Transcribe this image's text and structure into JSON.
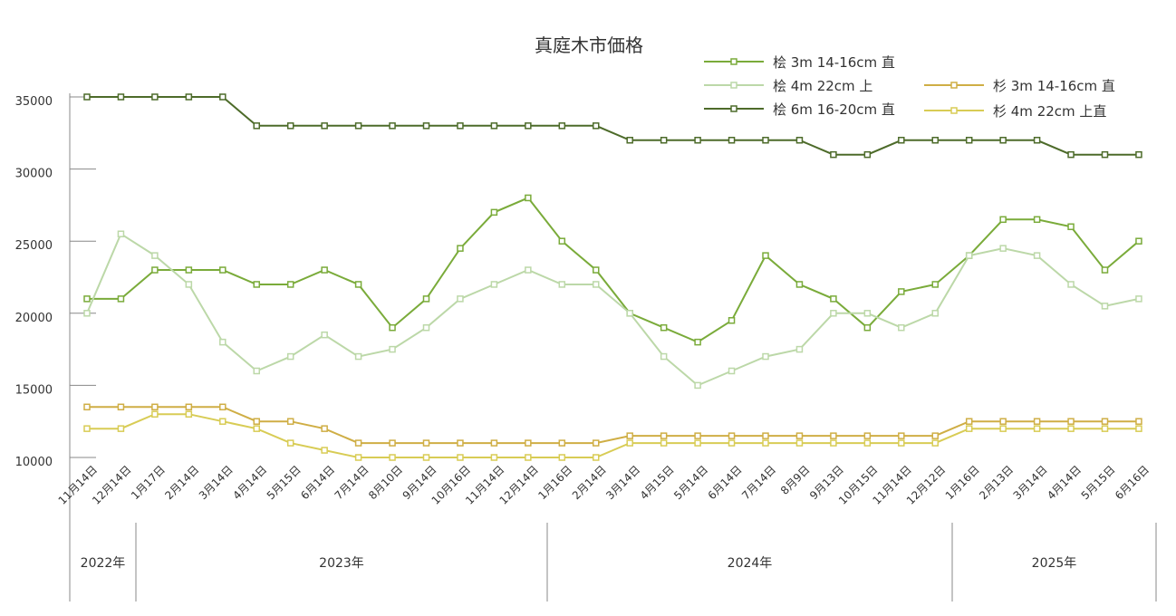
{
  "chart_data": {
    "type": "line",
    "title": "真庭木市価格",
    "ylim": [
      10000,
      35000
    ],
    "yticks": [
      "35000",
      "30000",
      "25000",
      "20000",
      "15000",
      "10000"
    ],
    "ytick_values": [
      35000,
      30000,
      25000,
      20000,
      15000,
      10000
    ],
    "categories": [
      "11月14日",
      "12月14日",
      "1月17日",
      "2月14日",
      "3月14日",
      "4月14日",
      "5月15日",
      "6月14日",
      "7月14日",
      "8月10日",
      "9月14日",
      "10月16日",
      "11月14日",
      "12月14日",
      "1月16日",
      "2月14日",
      "3月14日",
      "4月15日",
      "5月14日",
      "6月14日",
      "7月14日",
      "8月9日",
      "9月13日",
      "10月15日",
      "11月14日",
      "12月12日",
      "1月16日",
      "2月13日",
      "3月14日",
      "4月14日",
      "5月15日",
      "6月16日"
    ],
    "years": [
      {
        "label": "2022年",
        "start": 0,
        "end": 1
      },
      {
        "label": "2023年",
        "start": 2,
        "end": 13
      },
      {
        "label": "2024年",
        "start": 14,
        "end": 25
      },
      {
        "label": "2025年",
        "start": 26,
        "end": 31
      }
    ],
    "series": [
      {
        "name": "桧 3m 14-16cm 直",
        "color": "#7aab3a",
        "values": [
          21000,
          21000,
          23000,
          23000,
          23000,
          22000,
          22000,
          23000,
          22000,
          19000,
          21000,
          24500,
          27000,
          28000,
          25000,
          23000,
          20000,
          19000,
          18000,
          19500,
          24000,
          22000,
          21000,
          19000,
          21500,
          22000,
          24000,
          26500,
          26500,
          26000,
          23000,
          25000
        ]
      },
      {
        "name": "桧 4m 22cm 上",
        "color": "#bcd8a8",
        "values": [
          20000,
          25500,
          24000,
          22000,
          18000,
          16000,
          17000,
          18500,
          17000,
          17500,
          19000,
          21000,
          22000,
          23000,
          22000,
          22000,
          20000,
          17000,
          15000,
          16000,
          17000,
          17500,
          20000,
          20000,
          19000,
          20000,
          24000,
          24500,
          24000,
          22000,
          20500,
          21000
        ]
      },
      {
        "name": "桧 6m 16-20cm 直",
        "color": "#4d6b2a",
        "values": [
          35000,
          35000,
          35000,
          35000,
          35000,
          33000,
          33000,
          33000,
          33000,
          33000,
          33000,
          33000,
          33000,
          33000,
          33000,
          33000,
          32000,
          32000,
          32000,
          32000,
          32000,
          32000,
          31000,
          31000,
          32000,
          32000,
          32000,
          32000,
          32000,
          31000,
          31000,
          31000
        ]
      },
      {
        "name": "杉 3m 14-16cm 直",
        "color": "#cfae45",
        "values": [
          13500,
          13500,
          13500,
          13500,
          13500,
          12500,
          12500,
          12000,
          11000,
          11000,
          11000,
          11000,
          11000,
          11000,
          11000,
          11000,
          11500,
          11500,
          11500,
          11500,
          11500,
          11500,
          11500,
          11500,
          11500,
          11500,
          12500,
          12500,
          12500,
          12500,
          12500,
          12500
        ]
      },
      {
        "name": "杉 4m 22cm 上直",
        "color": "#d8cc55",
        "values": [
          12000,
          12000,
          13000,
          13000,
          12500,
          12000,
          11000,
          10500,
          10000,
          10000,
          10000,
          10000,
          10000,
          10000,
          10000,
          10000,
          11000,
          11000,
          11000,
          11000,
          11000,
          11000,
          11000,
          11000,
          11000,
          11000,
          12000,
          12000,
          12000,
          12000,
          12000,
          12000
        ]
      }
    ],
    "legend": [
      {
        "label": "桧 3m 14-16cm 直",
        "color": "#7aab3a"
      },
      {
        "label": "桧 4m 22cm 上",
        "color": "#bcd8a8"
      },
      {
        "label": "杉 3m 14-16cm 直",
        "color": "#cfae45"
      },
      {
        "label": "桧 6m 16-20cm 直",
        "color": "#4d6b2a"
      },
      {
        "label": "杉 4m 22cm 上直",
        "color": "#d8cc55"
      }
    ],
    "grid": false,
    "legend_position": "top-right"
  }
}
